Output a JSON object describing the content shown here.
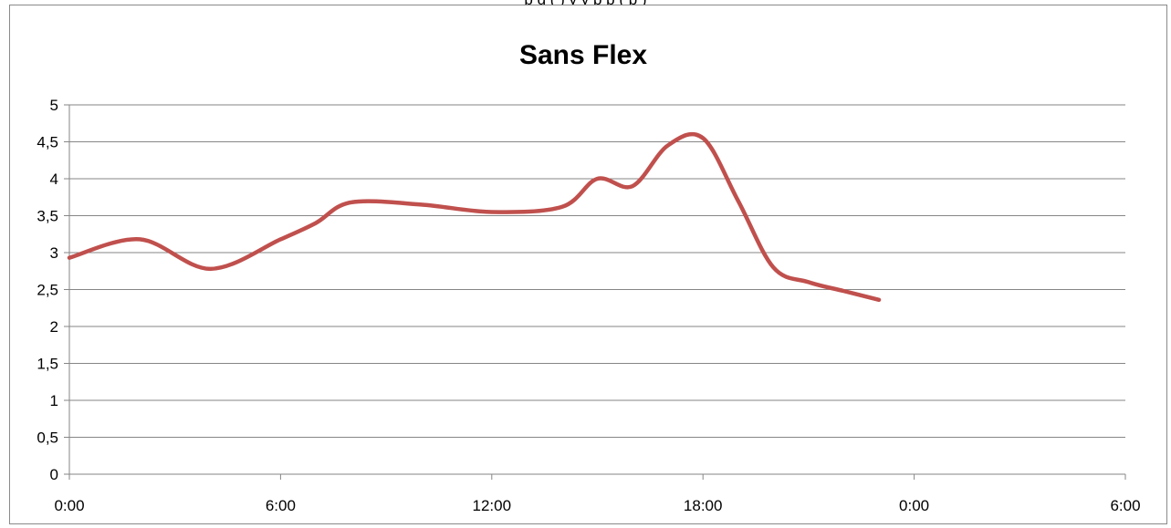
{
  "caption": "p         g (             )             y             y p p   (  p                                   )",
  "chart_data": {
    "type": "line",
    "title": "Sans  Flex",
    "xlabel": "",
    "ylabel": "",
    "x_ticks": [
      "0:00",
      "6:00",
      "12:00",
      "18:00",
      "0:00",
      "6:00"
    ],
    "x_range_hours": [
      0,
      30
    ],
    "y_ticks": [
      "0",
      "0,5",
      "1",
      "1,5",
      "2",
      "2,5",
      "3",
      "3,5",
      "4",
      "4,5",
      "5"
    ],
    "ylim": [
      0,
      5
    ],
    "grid": "horizontal",
    "legend": "none",
    "series": [
      {
        "color": "#c0504d",
        "x_hours": [
          0,
          2,
          4,
          6,
          7,
          8,
          10,
          12,
          14,
          15,
          16,
          17,
          18,
          19,
          20,
          21,
          22,
          23
        ],
        "values": [
          2.93,
          3.18,
          2.78,
          3.18,
          3.4,
          3.68,
          3.65,
          3.55,
          3.62,
          4.0,
          3.9,
          4.45,
          4.55,
          3.7,
          2.8,
          2.6,
          2.48,
          2.36
        ]
      }
    ]
  }
}
